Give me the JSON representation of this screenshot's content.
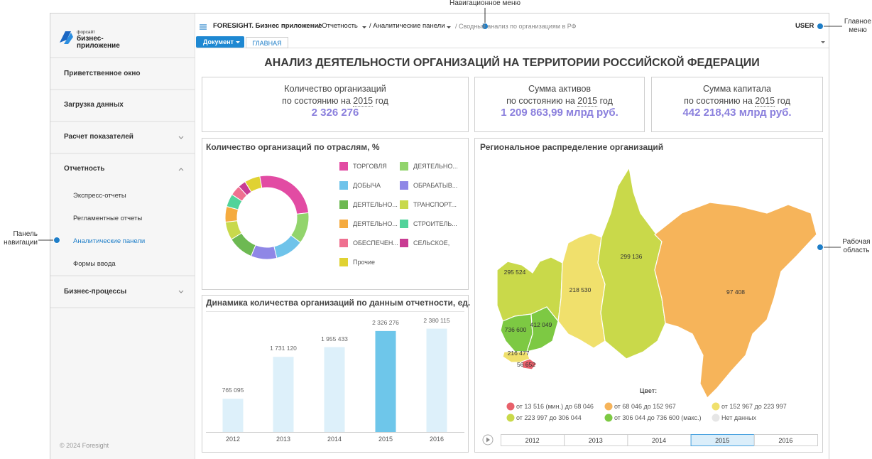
{
  "annotations": {
    "nav_menu": "Навигационное меню",
    "main_menu": "Главное меню",
    "nav_panel": "Панель навигации",
    "work_area": "Рабочая область"
  },
  "sidebar": {
    "logo": {
      "brand": "форсайт",
      "line1": "бизнес-",
      "line2": "приложение"
    },
    "items": [
      {
        "label": "Приветственное окно"
      },
      {
        "label": "Загрузка данных"
      },
      {
        "label": "Расчет показателей"
      },
      {
        "label": "Отчетность",
        "children": [
          {
            "label": "Экспресс-отчеты"
          },
          {
            "label": "Регламентные отчеты"
          },
          {
            "label": "Аналитические панели",
            "active": true
          },
          {
            "label": "Формы ввода"
          }
        ]
      },
      {
        "label": "Бизнес-процессы"
      }
    ],
    "footer": "© 2024 Foresight"
  },
  "topbar": {
    "app": "FORESIGHT. Бизнес приложение",
    "crumbs": [
      "Отчетность",
      "Аналитические панели",
      "Сводный анализ по организациям в РФ"
    ],
    "user": "USER"
  },
  "toolbar": {
    "document": "Документ",
    "tab": "ГЛАВНАЯ"
  },
  "dashboard": {
    "title": "АНАЛИЗ ДЕЯТЕЛЬНОСТИ ОРГАНИЗАЦИЙ НА ТЕРРИТОРИИ РОССИЙСКОЙ ФЕДЕРАЦИИ",
    "kpis": [
      {
        "title": "Количество организаций",
        "prefix": "по состоянию на",
        "year": "2015",
        "suffix": "год",
        "value": "2 326 276"
      },
      {
        "title": "Сумма активов",
        "prefix": "по состоянию на",
        "year": "2015",
        "suffix": "год",
        "value": "1 209 863,99 млрд руб."
      },
      {
        "title": "Сумма капитала",
        "prefix": "по состоянию на",
        "year": "2015",
        "suffix": "год",
        "value": "442 218,43 млрд руб."
      }
    ]
  },
  "chart_data": [
    {
      "type": "pie",
      "title": "Количество организаций по отраслям, %",
      "categories": [
        "ТОРГОВЛЯ",
        "ДЕЯТЕЛЬНО...",
        "ДОБЫЧА",
        "ОБРАБАТЫВ...",
        "ДЕЯТЕЛЬНО...",
        "ТРАНСПОРТ...",
        "ДЕЯТЕЛЬНО...",
        "СТРОИТЕЛЬ...",
        "ОБЕСПЕЧЕН...",
        "СЕЛЬСКОЕ,",
        "Прочие"
      ],
      "values": [
        26,
        12,
        11,
        10,
        10,
        7,
        6,
        5,
        4,
        3,
        6
      ],
      "colors": [
        "#e24ba3",
        "#92d46c",
        "#6fc3ea",
        "#8f87e6",
        "#6db952",
        "#c8d94c",
        "#f5ab3f",
        "#52d39a",
        "#ef7090",
        "#c93c93",
        "#e0d232"
      ]
    },
    {
      "type": "bar",
      "title": "Динамика количества организаций по данным отчетности, ед.",
      "categories": [
        "2012",
        "2013",
        "2014",
        "2015",
        "2016"
      ],
      "values": [
        765095,
        1731120,
        1955433,
        2326276,
        2380115
      ],
      "value_labels": [
        "765 095",
        "1 731 120",
        "1 955 433",
        "2 326 276",
        "2 380 115"
      ],
      "colors": [
        "#ddf0fa",
        "#ddf0fa",
        "#ddf0fa",
        "#6ec6ea",
        "#ddf0fa"
      ],
      "ylim": [
        0,
        2750000
      ]
    }
  ],
  "map": {
    "title": "Региональное распределение организаций",
    "regions": [
      {
        "label": "295 524",
        "color": "#c9d94a"
      },
      {
        "label": "218 530",
        "color": "#f0e06c"
      },
      {
        "label": "299 136",
        "color": "#c9d94a"
      },
      {
        "label": "97 408",
        "color": "#f6b45a"
      },
      {
        "label": "736 600",
        "color": "#7dc943"
      },
      {
        "label": "412 049",
        "color": "#7dc943"
      },
      {
        "label": "216 477",
        "color": "#f0e06c"
      },
      {
        "label": "56 652",
        "color": "#e8616b"
      }
    ],
    "legend": {
      "title": "Цвет:",
      "items": [
        {
          "label": "от 13 516 (мин.) до 68 046",
          "color": "#e8616b"
        },
        {
          "label": "от 68 046 до 152 967",
          "color": "#f6b45a"
        },
        {
          "label": "от 152 967 до 223 997",
          "color": "#f0e06c"
        },
        {
          "label": "от 223 997 до 306 044",
          "color": "#c9d94a"
        },
        {
          "label": "от 306 044 до 736 600 (макс.)",
          "color": "#7dc943"
        },
        {
          "label": "Нет данных",
          "color": "#e6e6e6"
        }
      ]
    },
    "years": [
      "2012",
      "2013",
      "2014",
      "2015",
      "2016"
    ],
    "selected_year": "2015"
  }
}
